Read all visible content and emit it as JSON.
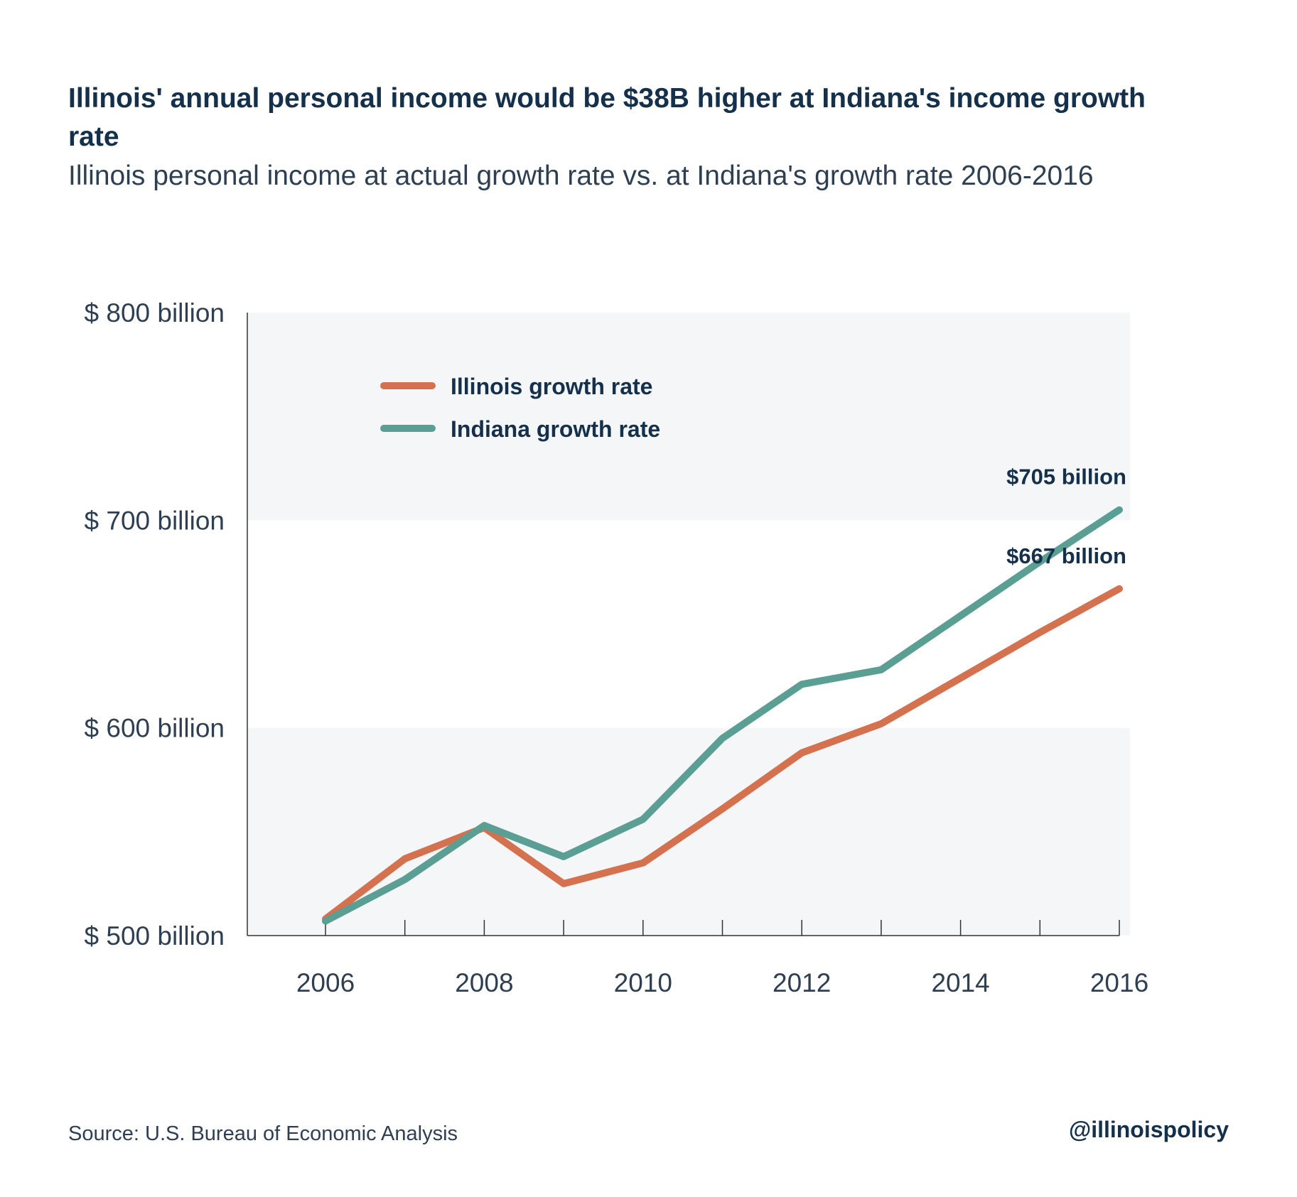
{
  "header": {
    "title": "Illinois' annual personal income would be $38B higher at Indiana's income growth rate",
    "subtitle": "Illinois personal income at actual growth rate vs. at Indiana's growth rate 2006-2016"
  },
  "footer": {
    "source": "Source:  U.S. Bureau of Economic Analysis",
    "handle": "@illinoispolicy"
  },
  "colors": {
    "illinois": "#d4714e",
    "indiana": "#5b9e94",
    "band": "#f5f6f8",
    "axis": "#333333",
    "text": "#2e3f52",
    "label": "#14304a"
  },
  "chart_data": {
    "type": "line",
    "title": "Illinois' annual personal income would be $38B higher at Indiana's income growth rate",
    "subtitle": "Illinois personal income at actual growth rate vs. at Indiana's growth rate 2006-2016",
    "x": [
      2006,
      2007,
      2008,
      2009,
      2010,
      2011,
      2012,
      2013,
      2014,
      2015,
      2016
    ],
    "xticks": [
      2006,
      2008,
      2010,
      2012,
      2014,
      2016
    ],
    "xtick_labels": [
      "2006",
      "2008",
      "2010",
      "2012",
      "2014",
      "2016"
    ],
    "xlim": [
      2006,
      2016
    ],
    "ylim": [
      500,
      800
    ],
    "yticks": [
      500,
      600,
      700,
      800
    ],
    "ytick_labels": [
      "$ 500 billion",
      "$ 600 billion",
      "$ 700 billion",
      "$ 800 billion"
    ],
    "xlabel": "",
    "ylabel": "",
    "grid": false,
    "background_bands": true,
    "legend_position": "top-left",
    "series": [
      {
        "name": "Illinois growth rate",
        "color": "#d4714e",
        "values": [
          508,
          537,
          552,
          525,
          535,
          561,
          588,
          602,
          624,
          646,
          667
        ]
      },
      {
        "name": "Indiana growth rate",
        "color": "#5b9e94",
        "values": [
          507,
          527,
          553,
          538,
          556,
          595,
          621,
          628,
          654,
          680,
          705
        ]
      }
    ],
    "annotations": [
      {
        "text": "$705 billion",
        "x": 2016,
        "y": 705,
        "series": "Indiana growth rate"
      },
      {
        "text": "$667 billion",
        "x": 2016,
        "y": 667,
        "series": "Illinois growth rate"
      }
    ]
  }
}
